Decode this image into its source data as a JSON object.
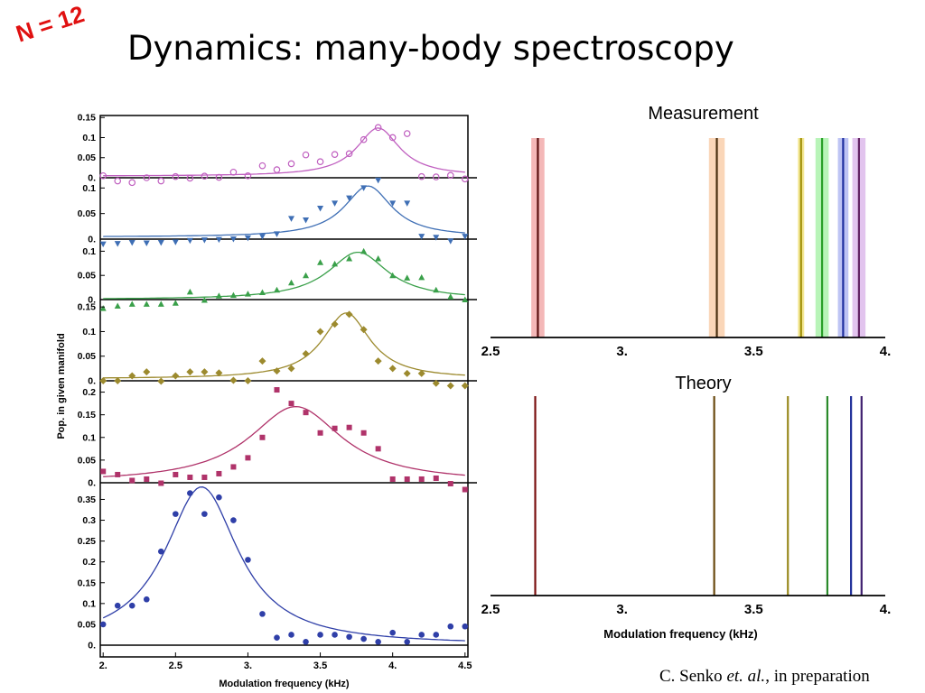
{
  "slide": {
    "badge": "N = 12",
    "title": "Dynamics: many-body spectroscopy",
    "credit": {
      "author": "C. Senko ",
      "etal": "et. al.",
      "rest": ", in preparation"
    }
  },
  "colors": {
    "badge": "#e01010",
    "magenta": "#c060c0",
    "blue": "#3f6fb5",
    "green": "#3aa04a",
    "olive": "#9c8a2e",
    "crimson": "#b0336a",
    "navy": "#2f3fa8",
    "axis": "#000000"
  },
  "chart_data": [
    {
      "type": "scatter",
      "layout": "stacked-panels",
      "xlabel": "Modulation frequency (kHz)",
      "ylabel": "Pop. in given manifold",
      "xlim": [
        1.98,
        4.52
      ],
      "xticks": [
        2,
        2.5,
        3,
        3.5,
        4,
        4.5
      ],
      "xtick_labels": [
        "2.",
        "2.5",
        "3.",
        "3.5",
        "4.",
        "4.5"
      ],
      "panels": [
        {
          "color": "#c060c0",
          "marker": "open-circle",
          "ylim": [
            -0.012,
            0.155
          ],
          "yticks": [
            0,
            0.05,
            0.1,
            0.15
          ],
          "ytick_labels": [
            "0.",
            "0.05",
            "0.1",
            "0.15"
          ],
          "fit": {
            "x0": 3.9,
            "width": 0.18,
            "amp": 0.12,
            "base": 0.004
          },
          "points": [
            [
              2.0,
              0.005
            ],
            [
              2.1,
              -0.008
            ],
            [
              2.2,
              -0.012
            ],
            [
              2.3,
              0.0
            ],
            [
              2.4,
              -0.008
            ],
            [
              2.5,
              0.003
            ],
            [
              2.6,
              -0.001
            ],
            [
              2.7,
              0.004
            ],
            [
              2.8,
              0.001
            ],
            [
              2.9,
              0.014
            ],
            [
              3.0,
              0.005
            ],
            [
              3.1,
              0.03
            ],
            [
              3.2,
              0.02
            ],
            [
              3.3,
              0.035
            ],
            [
              3.4,
              0.057
            ],
            [
              3.5,
              0.04
            ],
            [
              3.6,
              0.058
            ],
            [
              3.7,
              0.06
            ],
            [
              3.8,
              0.095
            ],
            [
              3.9,
              0.125
            ],
            [
              4.0,
              0.1
            ],
            [
              4.1,
              0.11
            ],
            [
              4.2,
              0.003
            ],
            [
              4.3,
              0.002
            ],
            [
              4.4,
              0.006
            ],
            [
              4.5,
              -0.003
            ]
          ]
        },
        {
          "color": "#3f6fb5",
          "marker": "triangle-down",
          "ylim": [
            -0.015,
            0.12
          ],
          "yticks": [
            0,
            0.05,
            0.1
          ],
          "ytick_labels": [
            "0.",
            "0.05",
            "0.1"
          ],
          "fit": {
            "x0": 3.83,
            "width": 0.2,
            "amp": 0.1,
            "base": 0.004
          },
          "points": [
            [
              2.0,
              -0.01
            ],
            [
              2.1,
              -0.009
            ],
            [
              2.2,
              -0.007
            ],
            [
              2.3,
              -0.008
            ],
            [
              2.4,
              -0.007
            ],
            [
              2.5,
              -0.006
            ],
            [
              2.6,
              -0.003
            ],
            [
              2.7,
              -0.002
            ],
            [
              2.8,
              -0.001
            ],
            [
              2.9,
              0.0
            ],
            [
              3.0,
              0.002
            ],
            [
              3.1,
              0.005
            ],
            [
              3.2,
              0.01
            ],
            [
              3.3,
              0.04
            ],
            [
              3.4,
              0.037
            ],
            [
              3.5,
              0.06
            ],
            [
              3.6,
              0.07
            ],
            [
              3.7,
              0.08
            ],
            [
              3.8,
              0.1
            ],
            [
              3.9,
              0.115
            ],
            [
              4.0,
              0.07
            ],
            [
              4.1,
              0.07
            ],
            [
              4.2,
              0.005
            ],
            [
              4.3,
              0.003
            ],
            [
              4.4,
              -0.004
            ],
            [
              4.5,
              0.005
            ]
          ]
        },
        {
          "color": "#3aa04a",
          "marker": "triangle-up",
          "ylim": [
            -0.025,
            0.125
          ],
          "yticks": [
            0,
            0.05,
            0.1
          ],
          "ytick_labels": [
            "0.",
            "0.05",
            "0.1"
          ],
          "fit": {
            "x0": 3.76,
            "width": 0.25,
            "amp": 0.098,
            "base": 0.0
          },
          "points": [
            [
              2.0,
              -0.018
            ],
            [
              2.1,
              -0.013
            ],
            [
              2.2,
              -0.009
            ],
            [
              2.3,
              -0.009
            ],
            [
              2.4,
              -0.009
            ],
            [
              2.5,
              -0.007
            ],
            [
              2.6,
              0.016
            ],
            [
              2.7,
              -0.001
            ],
            [
              2.8,
              0.008
            ],
            [
              2.9,
              0.009
            ],
            [
              3.0,
              0.012
            ],
            [
              3.1,
              0.015
            ],
            [
              3.2,
              0.02
            ],
            [
              3.3,
              0.035
            ],
            [
              3.4,
              0.05
            ],
            [
              3.5,
              0.077
            ],
            [
              3.6,
              0.074
            ],
            [
              3.7,
              0.085
            ],
            [
              3.8,
              0.1
            ],
            [
              3.9,
              0.085
            ],
            [
              4.0,
              0.05
            ],
            [
              4.1,
              0.045
            ],
            [
              4.2,
              0.046
            ],
            [
              4.3,
              0.02
            ],
            [
              4.4,
              0.006
            ],
            [
              4.5,
              0.0
            ]
          ]
        },
        {
          "color": "#9c8a2e",
          "marker": "diamond",
          "ylim": [
            -0.012,
            0.165
          ],
          "yticks": [
            0,
            0.05,
            0.1,
            0.15
          ],
          "ytick_labels": [
            "0.",
            "0.05",
            "0.1",
            "0.15"
          ],
          "fit": {
            "x0": 3.68,
            "width": 0.2,
            "amp": 0.134,
            "base": 0.004
          },
          "points": [
            [
              2.0,
              0.0
            ],
            [
              2.1,
              0.0
            ],
            [
              2.2,
              0.01
            ],
            [
              2.3,
              0.018
            ],
            [
              2.4,
              -0.001
            ],
            [
              2.5,
              0.01
            ],
            [
              2.6,
              0.018
            ],
            [
              2.7,
              0.018
            ],
            [
              2.8,
              0.016
            ],
            [
              2.9,
              0.001
            ],
            [
              3.0,
              0.0
            ],
            [
              3.1,
              0.04
            ],
            [
              3.2,
              0.02
            ],
            [
              3.3,
              0.025
            ],
            [
              3.4,
              0.055
            ],
            [
              3.5,
              0.1
            ],
            [
              3.6,
              0.115
            ],
            [
              3.7,
              0.135
            ],
            [
              3.8,
              0.104
            ],
            [
              3.9,
              0.04
            ],
            [
              4.0,
              0.025
            ],
            [
              4.1,
              0.015
            ],
            [
              4.2,
              0.015
            ],
            [
              4.3,
              -0.005
            ],
            [
              4.4,
              -0.01
            ],
            [
              4.5,
              -0.01
            ]
          ]
        },
        {
          "color": "#b0336a",
          "marker": "square",
          "ylim": [
            -0.018,
            0.225
          ],
          "yticks": [
            0,
            0.05,
            0.1,
            0.15,
            0.2
          ],
          "ytick_labels": [
            "0.",
            "0.05",
            "0.1",
            "0.15",
            "0.2"
          ],
          "fit": {
            "x0": 3.33,
            "width": 0.39,
            "amp": 0.168,
            "base": 0.0
          },
          "points": [
            [
              2.0,
              0.025
            ],
            [
              2.1,
              0.018
            ],
            [
              2.2,
              0.005
            ],
            [
              2.3,
              0.008
            ],
            [
              2.4,
              -0.001
            ],
            [
              2.5,
              0.018
            ],
            [
              2.6,
              0.012
            ],
            [
              2.7,
              0.012
            ],
            [
              2.8,
              0.02
            ],
            [
              2.9,
              0.035
            ],
            [
              3.0,
              0.055
            ],
            [
              3.1,
              0.1
            ],
            [
              3.2,
              0.205
            ],
            [
              3.3,
              0.175
            ],
            [
              3.4,
              0.155
            ],
            [
              3.5,
              0.11
            ],
            [
              3.6,
              0.12
            ],
            [
              3.7,
              0.122
            ],
            [
              3.8,
              0.11
            ],
            [
              3.9,
              0.075
            ],
            [
              4.0,
              0.008
            ],
            [
              4.1,
              0.008
            ],
            [
              4.2,
              0.008
            ],
            [
              4.3,
              0.01
            ],
            [
              4.4,
              -0.002
            ],
            [
              4.5,
              -0.015
            ]
          ]
        },
        {
          "color": "#2f3fa8",
          "marker": "filled-circle",
          "ylim": [
            -0.01,
            0.39
          ],
          "yticks": [
            0,
            0.05,
            0.1,
            0.15,
            0.2,
            0.25,
            0.3,
            0.35
          ],
          "ytick_labels": [
            "0.",
            "0.05",
            "0.1",
            "0.15",
            "0.2",
            "0.25",
            "0.3",
            "0.35"
          ],
          "fit": {
            "x0": 2.68,
            "width": 0.31,
            "amp": 0.38,
            "base": 0.0
          },
          "points": [
            [
              2.0,
              0.05
            ],
            [
              2.1,
              0.095
            ],
            [
              2.2,
              0.095
            ],
            [
              2.3,
              0.11
            ],
            [
              2.4,
              0.225
            ],
            [
              2.5,
              0.315
            ],
            [
              2.6,
              0.365
            ],
            [
              2.7,
              0.315
            ],
            [
              2.8,
              0.355
            ],
            [
              2.9,
              0.3
            ],
            [
              3.0,
              0.205
            ],
            [
              3.1,
              0.075
            ],
            [
              3.2,
              0.018
            ],
            [
              3.3,
              0.025
            ],
            [
              3.4,
              0.008
            ],
            [
              3.5,
              0.025
            ],
            [
              3.6,
              0.025
            ],
            [
              3.7,
              0.02
            ],
            [
              3.8,
              0.015
            ],
            [
              3.9,
              0.008
            ],
            [
              4.0,
              0.03
            ],
            [
              4.1,
              0.008
            ],
            [
              4.2,
              0.025
            ],
            [
              4.3,
              0.025
            ],
            [
              4.4,
              0.045
            ],
            [
              4.5,
              0.045
            ]
          ]
        }
      ]
    },
    {
      "type": "spectrum-lines",
      "title": "Measurement",
      "xlim": [
        2.5,
        4.0
      ],
      "xticks": [
        2.5,
        3,
        3.5,
        4
      ],
      "xtick_labels": [
        "2.5",
        "3.",
        "3.5",
        "4."
      ],
      "lines": [
        {
          "x": 2.68,
          "band": 0.025,
          "line": "#5a1010",
          "band_color": "#f0a0a0"
        },
        {
          "x": 3.36,
          "band": 0.03,
          "line": "#4a3010",
          "band_color": "#f8c8a0"
        },
        {
          "x": 3.68,
          "band": 0.012,
          "line": "#a0900a",
          "band_color": "#f0e070"
        },
        {
          "x": 3.76,
          "band": 0.025,
          "line": "#28a028",
          "band_color": "#a0f0a0"
        },
        {
          "x": 3.84,
          "band": 0.02,
          "line": "#2030a0",
          "band_color": "#a8b0f0"
        },
        {
          "x": 3.9,
          "band": 0.025,
          "line": "#602060",
          "band_color": "#d8b0e8"
        }
      ]
    },
    {
      "type": "spectrum-lines",
      "title": "Theory",
      "xlabel": "Modulation frequency (kHz)",
      "xlim": [
        2.5,
        4.0
      ],
      "xticks": [
        2.5,
        3,
        3.5,
        4
      ],
      "xtick_labels": [
        "2.5",
        "3.",
        "3.5",
        "4."
      ],
      "lines": [
        {
          "x": 2.67,
          "line": "#7a1010"
        },
        {
          "x": 3.35,
          "line": "#6a4a10"
        },
        {
          "x": 3.63,
          "line": "#9a8a20"
        },
        {
          "x": 3.78,
          "line": "#2a8a2a"
        },
        {
          "x": 3.87,
          "line": "#20309a"
        },
        {
          "x": 3.91,
          "line": "#402070"
        }
      ]
    }
  ]
}
